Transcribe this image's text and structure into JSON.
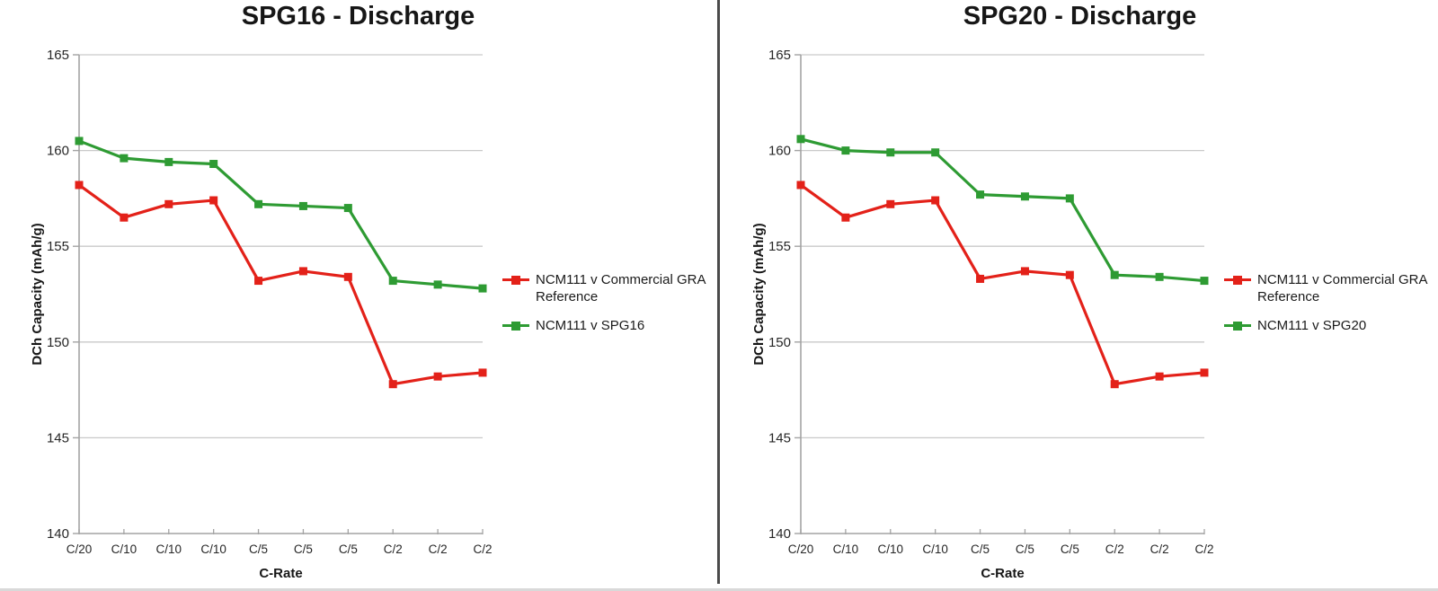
{
  "page": {
    "background": "#ffffff"
  },
  "colors": {
    "red_series": "#e32119",
    "green_series": "#2e9b33",
    "grid": "#c9c9c9",
    "axis": "#a3a3a3",
    "tick_text": "#262626",
    "title_text": "#161616",
    "divider": "#4a4a4a",
    "bottom_edge": "#d9d9d9"
  },
  "chart_data": [
    {
      "type": "line",
      "title": "SPG16 - Discharge",
      "xlabel": "C-Rate",
      "ylabel": "DCh Capacity (mAh/g)",
      "ylim": [
        140,
        165
      ],
      "yticks": [
        140,
        145,
        150,
        155,
        160,
        165
      ],
      "grid": true,
      "legend_position": "right",
      "categories": [
        "C/20",
        "C/10",
        "C/10",
        "C/10",
        "C/5",
        "C/5",
        "C/5",
        "C/2",
        "C/2",
        "C/2"
      ],
      "series": [
        {
          "name": "NCM111 v Commercial GRA Reference",
          "color": "#e32119",
          "marker": "square",
          "values": [
            158.2,
            156.5,
            157.2,
            157.4,
            153.2,
            153.7,
            153.4,
            147.8,
            148.2,
            148.4
          ]
        },
        {
          "name": "NCM111 v SPG16",
          "color": "#2e9b33",
          "marker": "square",
          "values": [
            160.5,
            159.6,
            159.4,
            159.3,
            157.2,
            157.1,
            157.0,
            153.2,
            153.0,
            152.8
          ]
        }
      ]
    },
    {
      "type": "line",
      "title": "SPG20 - Discharge",
      "xlabel": "C-Rate",
      "ylabel": "DCh Capacity (mAh/g)",
      "ylim": [
        140,
        165
      ],
      "yticks": [
        140,
        145,
        150,
        155,
        160,
        165
      ],
      "grid": true,
      "legend_position": "right",
      "categories": [
        "C/20",
        "C/10",
        "C/10",
        "C/10",
        "C/5",
        "C/5",
        "C/5",
        "C/2",
        "C/2",
        "C/2"
      ],
      "series": [
        {
          "name": "NCM111 v Commercial GRA Reference",
          "color": "#e32119",
          "marker": "square",
          "values": [
            158.2,
            156.5,
            157.2,
            157.4,
            153.3,
            153.7,
            153.5,
            147.8,
            148.2,
            148.4
          ]
        },
        {
          "name": "NCM111 v SPG20",
          "color": "#2e9b33",
          "marker": "square",
          "values": [
            160.6,
            160.0,
            159.9,
            159.9,
            157.7,
            157.6,
            157.5,
            153.5,
            153.4,
            153.2
          ]
        }
      ]
    }
  ]
}
